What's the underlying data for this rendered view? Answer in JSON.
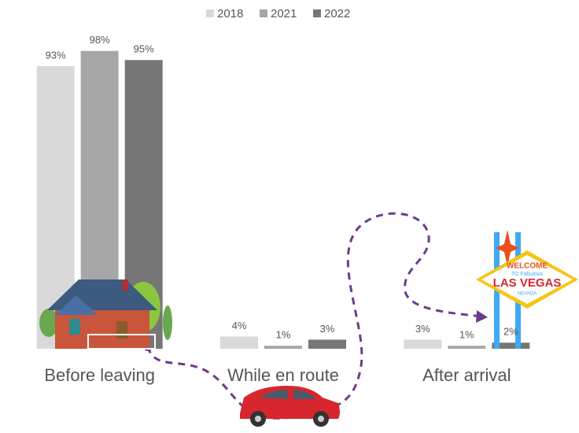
{
  "chart_data": {
    "type": "bar",
    "categories": [
      "Before leaving",
      "While en route",
      "After arrival"
    ],
    "series": [
      {
        "name": "2018",
        "color": "#d9d9d9",
        "values": [
          93,
          4,
          3
        ],
        "value_labels": [
          "93%",
          "4%",
          "3%"
        ]
      },
      {
        "name": "2021",
        "color": "#a6a6a6",
        "values": [
          98,
          1,
          1
        ],
        "value_labels": [
          "98%",
          "1%",
          "1%"
        ]
      },
      {
        "name": "2022",
        "color": "#767676",
        "values": [
          95,
          3,
          2
        ],
        "value_labels": [
          "95%",
          "3%",
          "2%"
        ]
      }
    ],
    "ylim": [
      0,
      100
    ]
  },
  "decorations": {
    "sign_lines": [
      "WELCOME",
      "TO Fabulous",
      "LAS VEGAS",
      "NEVADA"
    ]
  }
}
